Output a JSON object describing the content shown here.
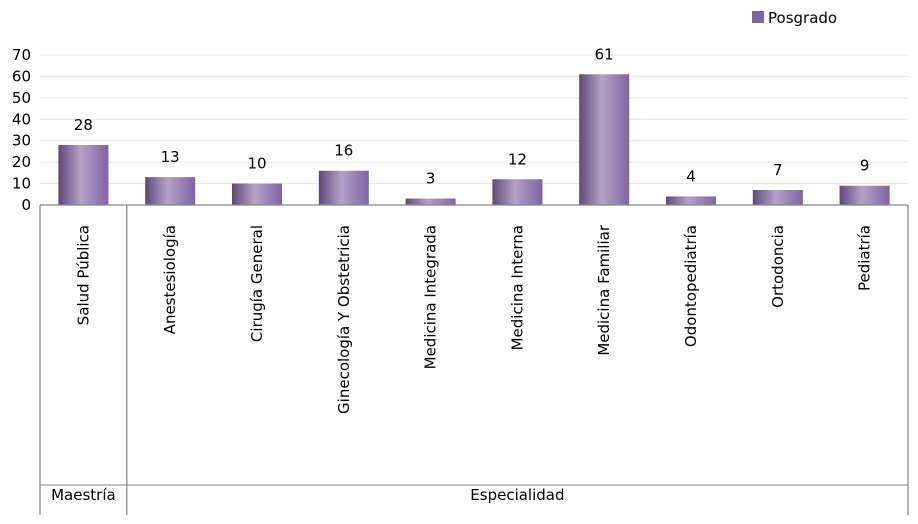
{
  "chart_data": {
    "type": "bar",
    "categories": [
      "Salud Pública",
      "Anestesiología",
      "Cirugía General",
      "Ginecología Y Obstetricia",
      "Medicina Integrada",
      "Medicina Interna",
      "Medicina Familiar",
      "Odontopediatría",
      "Ortodoncia",
      "Pediatría"
    ],
    "groups": [
      {
        "label": "Maestría",
        "categories": [
          "Salud Pública"
        ]
      },
      {
        "label": "Especialidad",
        "categories": [
          "Anestesiología",
          "Cirugía General",
          "Ginecología Y Obstetricia",
          "Medicina Integrada",
          "Medicina Interna",
          "Medicina Familiar",
          "Odontopediatría",
          "Ortodoncia",
          "Pediatría"
        ]
      }
    ],
    "series": [
      {
        "name": "Posgrado",
        "values": [
          28,
          13,
          10,
          16,
          3,
          12,
          61,
          4,
          7,
          9
        ]
      }
    ],
    "data_labels": true,
    "ylim": [
      0,
      70
    ],
    "yticks": [
      0,
      10,
      20,
      30,
      40,
      50,
      60,
      70
    ],
    "grid": true,
    "legend": "top-right",
    "colors": {
      "bar": "#8064a2",
      "bar_light": "#b3a2c7",
      "bar_dark": "#60497a",
      "grid": "#e6e6e6",
      "axis": "#868686"
    }
  }
}
